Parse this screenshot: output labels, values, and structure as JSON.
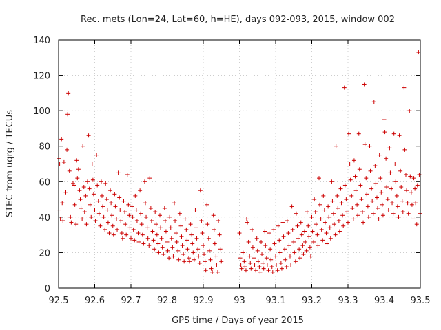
{
  "chart_data": {
    "type": "scatter",
    "title": "Rec. mets (Lon=24, Lat=60, h=HE), days 092-093, 2015, window 002",
    "xlabel": "GPS time / Days of year 2015",
    "ylabel": "STEC from uqrg / TECUs",
    "xlim": [
      92.5,
      93.5
    ],
    "ylim": [
      0,
      140
    ],
    "xticks": [
      "92.5",
      "92.6",
      "92.7",
      "92.8",
      "92.9",
      "93",
      "93.1",
      "93.2",
      "93.3",
      "93.4",
      "93.5"
    ],
    "yticks": [
      "0",
      "20",
      "40",
      "60",
      "80",
      "100",
      "120",
      "140"
    ],
    "grid": true,
    "marker": "plus",
    "color": "#cc0000",
    "points": [
      [
        92.5,
        44
      ],
      [
        92.501,
        73
      ],
      [
        92.503,
        70
      ],
      [
        92.505,
        39
      ],
      [
        92.508,
        84
      ],
      [
        92.51,
        48
      ],
      [
        92.512,
        38
      ],
      [
        92.515,
        71
      ],
      [
        92.52,
        54
      ],
      [
        92.523,
        78
      ],
      [
        92.525,
        98
      ],
      [
        92.527,
        110
      ],
      [
        92.53,
        66
      ],
      [
        92.533,
        40
      ],
      [
        92.535,
        37
      ],
      [
        92.54,
        59
      ],
      [
        92.543,
        58
      ],
      [
        92.545,
        47
      ],
      [
        92.548,
        36
      ],
      [
        92.55,
        72
      ],
      [
        92.552,
        62
      ],
      [
        92.555,
        67
      ],
      [
        92.558,
        55
      ],
      [
        92.56,
        50
      ],
      [
        92.562,
        45
      ],
      [
        92.565,
        39
      ],
      [
        92.567,
        80
      ],
      [
        92.57,
        57
      ],
      [
        92.572,
        43
      ],
      [
        92.575,
        52
      ],
      [
        92.577,
        36
      ],
      [
        92.58,
        60
      ],
      [
        92.583,
        86
      ],
      [
        92.585,
        56
      ],
      [
        92.587,
        47
      ],
      [
        92.59,
        40
      ],
      [
        92.593,
        70
      ],
      [
        92.595,
        61
      ],
      [
        92.597,
        53
      ],
      [
        92.6,
        44
      ],
      [
        92.602,
        38
      ],
      [
        92.605,
        75
      ],
      [
        92.607,
        58
      ],
      [
        92.61,
        49
      ],
      [
        92.612,
        42
      ],
      [
        92.615,
        35
      ],
      [
        92.618,
        60
      ],
      [
        92.62,
        52
      ],
      [
        92.622,
        46
      ],
      [
        92.625,
        40
      ],
      [
        92.628,
        33
      ],
      [
        92.63,
        59
      ],
      [
        92.633,
        50
      ],
      [
        92.635,
        44
      ],
      [
        92.637,
        37
      ],
      [
        92.64,
        31
      ],
      [
        92.643,
        55
      ],
      [
        92.645,
        48
      ],
      [
        92.647,
        41
      ],
      [
        92.65,
        35
      ],
      [
        92.652,
        30
      ],
      [
        92.655,
        53
      ],
      [
        92.657,
        46
      ],
      [
        92.66,
        39
      ],
      [
        92.662,
        33
      ],
      [
        92.665,
        65
      ],
      [
        92.668,
        51
      ],
      [
        92.67,
        44
      ],
      [
        92.672,
        38
      ],
      [
        92.675,
        31
      ],
      [
        92.677,
        28
      ],
      [
        92.68,
        49
      ],
      [
        92.683,
        43
      ],
      [
        92.685,
        36
      ],
      [
        92.687,
        30
      ],
      [
        92.69,
        64
      ],
      [
        92.693,
        47
      ],
      [
        92.695,
        41
      ],
      [
        92.697,
        34
      ],
      [
        92.7,
        28
      ],
      [
        92.703,
        46
      ],
      [
        92.705,
        40
      ],
      [
        92.707,
        33
      ],
      [
        92.71,
        27
      ],
      [
        92.712,
        52
      ],
      [
        92.715,
        44
      ],
      [
        92.717,
        38
      ],
      [
        92.72,
        31
      ],
      [
        92.722,
        26
      ],
      [
        92.725,
        55
      ],
      [
        92.727,
        42
      ],
      [
        92.73,
        36
      ],
      [
        92.732,
        30
      ],
      [
        92.735,
        25
      ],
      [
        92.738,
        60
      ],
      [
        92.74,
        48
      ],
      [
        92.742,
        40
      ],
      [
        92.745,
        34
      ],
      [
        92.747,
        28
      ],
      [
        92.75,
        24
      ],
      [
        92.752,
        62
      ],
      [
        92.755,
        45
      ],
      [
        92.757,
        38
      ],
      [
        92.76,
        32
      ],
      [
        92.762,
        27
      ],
      [
        92.765,
        22
      ],
      [
        92.767,
        43
      ],
      [
        92.77,
        36
      ],
      [
        92.772,
        30
      ],
      [
        92.775,
        25
      ],
      [
        92.777,
        20
      ],
      [
        92.78,
        41
      ],
      [
        92.782,
        34
      ],
      [
        92.785,
        28
      ],
      [
        92.787,
        23
      ],
      [
        92.79,
        19
      ],
      [
        92.793,
        45
      ],
      [
        92.795,
        38
      ],
      [
        92.797,
        32
      ],
      [
        92.8,
        26
      ],
      [
        92.802,
        21
      ],
      [
        92.805,
        17
      ],
      [
        92.807,
        40
      ],
      [
        92.81,
        34
      ],
      [
        92.812,
        28
      ],
      [
        92.815,
        23
      ],
      [
        92.817,
        18
      ],
      [
        92.82,
        48
      ],
      [
        92.822,
        38
      ],
      [
        92.825,
        31
      ],
      [
        92.827,
        26
      ],
      [
        92.83,
        21
      ],
      [
        92.832,
        16
      ],
      [
        92.835,
        42
      ],
      [
        92.838,
        35
      ],
      [
        92.84,
        29
      ],
      [
        92.842,
        24
      ],
      [
        92.845,
        19
      ],
      [
        92.847,
        15
      ],
      [
        92.85,
        39
      ],
      [
        92.853,
        33
      ],
      [
        92.855,
        27
      ],
      [
        92.857,
        22
      ],
      [
        92.86,
        17
      ],
      [
        92.862,
        15
      ],
      [
        92.865,
        36
      ],
      [
        92.868,
        30
      ],
      [
        92.87,
        25
      ],
      [
        92.872,
        20
      ],
      [
        92.875,
        16
      ],
      [
        92.878,
        44
      ],
      [
        92.88,
        34
      ],
      [
        92.882,
        28
      ],
      [
        92.885,
        22
      ],
      [
        92.887,
        18
      ],
      [
        92.89,
        14
      ],
      [
        92.892,
        55
      ],
      [
        92.895,
        38
      ],
      [
        92.897,
        31
      ],
      [
        92.9,
        24
      ],
      [
        92.902,
        19
      ],
      [
        92.905,
        15
      ],
      [
        92.907,
        10
      ],
      [
        92.91,
        47
      ],
      [
        92.912,
        36
      ],
      [
        92.915,
        28
      ],
      [
        92.917,
        21
      ],
      [
        92.92,
        16
      ],
      [
        92.922,
        11
      ],
      [
        92.925,
        9
      ],
      [
        92.928,
        41
      ],
      [
        92.93,
        33
      ],
      [
        92.932,
        25
      ],
      [
        92.935,
        18
      ],
      [
        92.937,
        13
      ],
      [
        92.94,
        9
      ],
      [
        92.942,
        38
      ],
      [
        92.945,
        30
      ],
      [
        92.947,
        22
      ],
      [
        92.95,
        15
      ],
      [
        93.0,
        31
      ],
      [
        93.002,
        17
      ],
      [
        93.004,
        13
      ],
      [
        93.006,
        11
      ],
      [
        93.01,
        20
      ],
      [
        93.013,
        15
      ],
      [
        93.015,
        12
      ],
      [
        93.018,
        10
      ],
      [
        93.02,
        39
      ],
      [
        93.022,
        37
      ],
      [
        93.025,
        26
      ],
      [
        93.028,
        18
      ],
      [
        93.03,
        14
      ],
      [
        93.032,
        11
      ],
      [
        93.035,
        33
      ],
      [
        93.037,
        23
      ],
      [
        93.04,
        17
      ],
      [
        93.042,
        13
      ],
      [
        93.045,
        10
      ],
      [
        93.048,
        28
      ],
      [
        93.05,
        21
      ],
      [
        93.052,
        15
      ],
      [
        93.055,
        12
      ],
      [
        93.057,
        9
      ],
      [
        93.06,
        26
      ],
      [
        93.062,
        19
      ],
      [
        93.065,
        14
      ],
      [
        93.067,
        11
      ],
      [
        93.07,
        32
      ],
      [
        93.072,
        24
      ],
      [
        93.075,
        17
      ],
      [
        93.077,
        13
      ],
      [
        93.08,
        10
      ],
      [
        93.082,
        31
      ],
      [
        93.085,
        22
      ],
      [
        93.087,
        16
      ],
      [
        93.09,
        12
      ],
      [
        93.092,
        9
      ],
      [
        93.095,
        33
      ],
      [
        93.097,
        25
      ],
      [
        93.1,
        18
      ],
      [
        93.102,
        13
      ],
      [
        93.105,
        10
      ],
      [
        93.107,
        35
      ],
      [
        93.11,
        27
      ],
      [
        93.112,
        20
      ],
      [
        93.115,
        14
      ],
      [
        93.117,
        11
      ],
      [
        93.12,
        37
      ],
      [
        93.122,
        29
      ],
      [
        93.125,
        22
      ],
      [
        93.127,
        16
      ],
      [
        93.13,
        12
      ],
      [
        93.132,
        38
      ],
      [
        93.135,
        31
      ],
      [
        93.137,
        24
      ],
      [
        93.14,
        18
      ],
      [
        93.142,
        13
      ],
      [
        93.145,
        46
      ],
      [
        93.147,
        33
      ],
      [
        93.15,
        26
      ],
      [
        93.152,
        20
      ],
      [
        93.155,
        15
      ],
      [
        93.157,
        42
      ],
      [
        93.16,
        35
      ],
      [
        93.162,
        28
      ],
      [
        93.165,
        22
      ],
      [
        93.167,
        17
      ],
      [
        93.17,
        37
      ],
      [
        93.172,
        30
      ],
      [
        93.175,
        24
      ],
      [
        93.177,
        19
      ],
      [
        93.18,
        32
      ],
      [
        93.182,
        26
      ],
      [
        93.185,
        21
      ],
      [
        93.187,
        43
      ],
      [
        93.19,
        35
      ],
      [
        93.192,
        29
      ],
      [
        93.195,
        23
      ],
      [
        93.197,
        18
      ],
      [
        93.2,
        40
      ],
      [
        93.202,
        32
      ],
      [
        93.205,
        26
      ],
      [
        93.207,
        50
      ],
      [
        93.21,
        43
      ],
      [
        93.212,
        36
      ],
      [
        93.215,
        30
      ],
      [
        93.217,
        24
      ],
      [
        93.22,
        62
      ],
      [
        93.222,
        47
      ],
      [
        93.225,
        39
      ],
      [
        93.227,
        33
      ],
      [
        93.23,
        27
      ],
      [
        93.232,
        52
      ],
      [
        93.235,
        44
      ],
      [
        93.237,
        37
      ],
      [
        93.24,
        31
      ],
      [
        93.242,
        25
      ],
      [
        93.245,
        46
      ],
      [
        93.247,
        40
      ],
      [
        93.25,
        34
      ],
      [
        93.252,
        28
      ],
      [
        93.255,
        60
      ],
      [
        93.257,
        49
      ],
      [
        93.26,
        42
      ],
      [
        93.262,
        36
      ],
      [
        93.265,
        30
      ],
      [
        93.267,
        80
      ],
      [
        93.27,
        52
      ],
      [
        93.272,
        45
      ],
      [
        93.275,
        38
      ],
      [
        93.277,
        32
      ],
      [
        93.28,
        56
      ],
      [
        93.282,
        48
      ],
      [
        93.285,
        41
      ],
      [
        93.287,
        35
      ],
      [
        93.29,
        113
      ],
      [
        93.292,
        58
      ],
      [
        93.295,
        50
      ],
      [
        93.297,
        43
      ],
      [
        93.3,
        37
      ],
      [
        93.302,
        87
      ],
      [
        93.305,
        70
      ],
      [
        93.307,
        61
      ],
      [
        93.31,
        52
      ],
      [
        93.312,
        45
      ],
      [
        93.315,
        39
      ],
      [
        93.317,
        72
      ],
      [
        93.32,
        63
      ],
      [
        93.322,
        55
      ],
      [
        93.325,
        47
      ],
      [
        93.327,
        41
      ],
      [
        93.33,
        87
      ],
      [
        93.332,
        67
      ],
      [
        93.335,
        58
      ],
      [
        93.337,
        50
      ],
      [
        93.34,
        43
      ],
      [
        93.342,
        37
      ],
      [
        93.345,
        115
      ],
      [
        93.347,
        81
      ],
      [
        93.35,
        62
      ],
      [
        93.352,
        53
      ],
      [
        93.355,
        46
      ],
      [
        93.357,
        40
      ],
      [
        93.36,
        80
      ],
      [
        93.362,
        66
      ],
      [
        93.365,
        56
      ],
      [
        93.367,
        49
      ],
      [
        93.37,
        42
      ],
      [
        93.372,
        105
      ],
      [
        93.375,
        69
      ],
      [
        93.377,
        59
      ],
      [
        93.38,
        51
      ],
      [
        93.382,
        45
      ],
      [
        93.385,
        39
      ],
      [
        93.387,
        75
      ],
      [
        93.39,
        62
      ],
      [
        93.392,
        54
      ],
      [
        93.395,
        47
      ],
      [
        93.397,
        41
      ],
      [
        93.4,
        95
      ],
      [
        93.402,
        88
      ],
      [
        93.405,
        73
      ],
      [
        93.407,
        57
      ],
      [
        93.41,
        50
      ],
      [
        93.412,
        44
      ],
      [
        93.415,
        79
      ],
      [
        93.417,
        65
      ],
      [
        93.42,
        56
      ],
      [
        93.422,
        48
      ],
      [
        93.425,
        42
      ],
      [
        93.427,
        87
      ],
      [
        93.43,
        70
      ],
      [
        93.432,
        60
      ],
      [
        93.435,
        52
      ],
      [
        93.437,
        46
      ],
      [
        93.44,
        40
      ],
      [
        93.442,
        86
      ],
      [
        93.445,
        66
      ],
      [
        93.447,
        57
      ],
      [
        93.45,
        49
      ],
      [
        93.452,
        43
      ],
      [
        93.455,
        113
      ],
      [
        93.457,
        78
      ],
      [
        93.46,
        64
      ],
      [
        93.462,
        55
      ],
      [
        93.465,
        48
      ],
      [
        93.467,
        42
      ],
      [
        93.47,
        100
      ],
      [
        93.472,
        63
      ],
      [
        93.475,
        54
      ],
      [
        93.477,
        47
      ],
      [
        93.48,
        39
      ],
      [
        93.482,
        62
      ],
      [
        93.485,
        56
      ],
      [
        93.487,
        48
      ],
      [
        93.49,
        36
      ],
      [
        93.492,
        58
      ],
      [
        93.495,
        133
      ],
      [
        93.497,
        64
      ],
      [
        93.499,
        42
      ]
    ]
  }
}
